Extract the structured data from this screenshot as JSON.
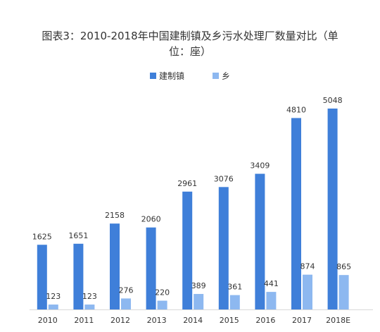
{
  "title_line1": "图表3：2010-2018年中国建制镇及乡污水处理厂数量对比（单",
  "title_line2": "位：座）",
  "chart_data": {
    "type": "bar",
    "title": "图表3：2010-2018年中国建制镇及乡污水处理厂数量对比（单位：座）",
    "categories": [
      "2010",
      "2011",
      "2012",
      "2013",
      "2014",
      "2015",
      "2016",
      "2017",
      "2018E"
    ],
    "series": [
      {
        "name": "建制镇",
        "color": "#3f7fd9",
        "values": [
          1625,
          1651,
          2158,
          2060,
          2961,
          3076,
          3409,
          4810,
          5048
        ]
      },
      {
        "name": "乡",
        "color": "#8db8f0",
        "values": [
          123,
          123,
          276,
          220,
          389,
          361,
          441,
          874,
          865
        ]
      }
    ],
    "ylim": [
      0,
      5048
    ],
    "grid": false,
    "legend": "top-center",
    "xlabel": "",
    "ylabel": ""
  }
}
